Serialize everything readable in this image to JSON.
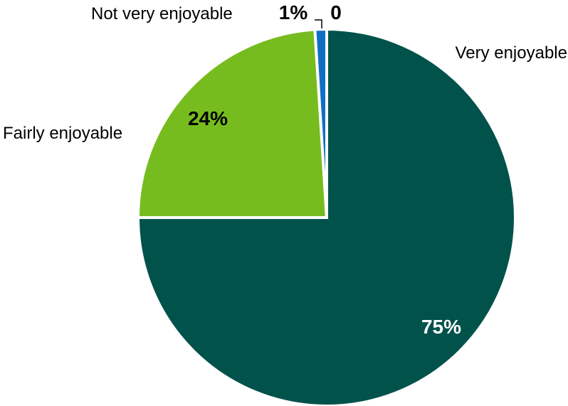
{
  "chart_data": {
    "type": "pie",
    "slices": [
      {
        "category": "Very enjoyable",
        "value": 75,
        "data_label": "75%",
        "color": "#00524b",
        "label_color": "#ffffff"
      },
      {
        "category": "Fairly enjoyable",
        "value": 24,
        "data_label": "24%",
        "color": "#77bc1f",
        "label_color": "#000000"
      },
      {
        "category": "Not very enjoyable",
        "value": 1,
        "data_label": "1%",
        "color": "#0f6fc6",
        "label_color": "#000000"
      },
      {
        "category": "",
        "value": 0,
        "data_label": "0",
        "color": "#000000",
        "label_color": "#000000"
      }
    ],
    "start_angle_deg": 0,
    "direction": "clockwise",
    "slice_border_color": "#ffffff",
    "legend": "none"
  }
}
